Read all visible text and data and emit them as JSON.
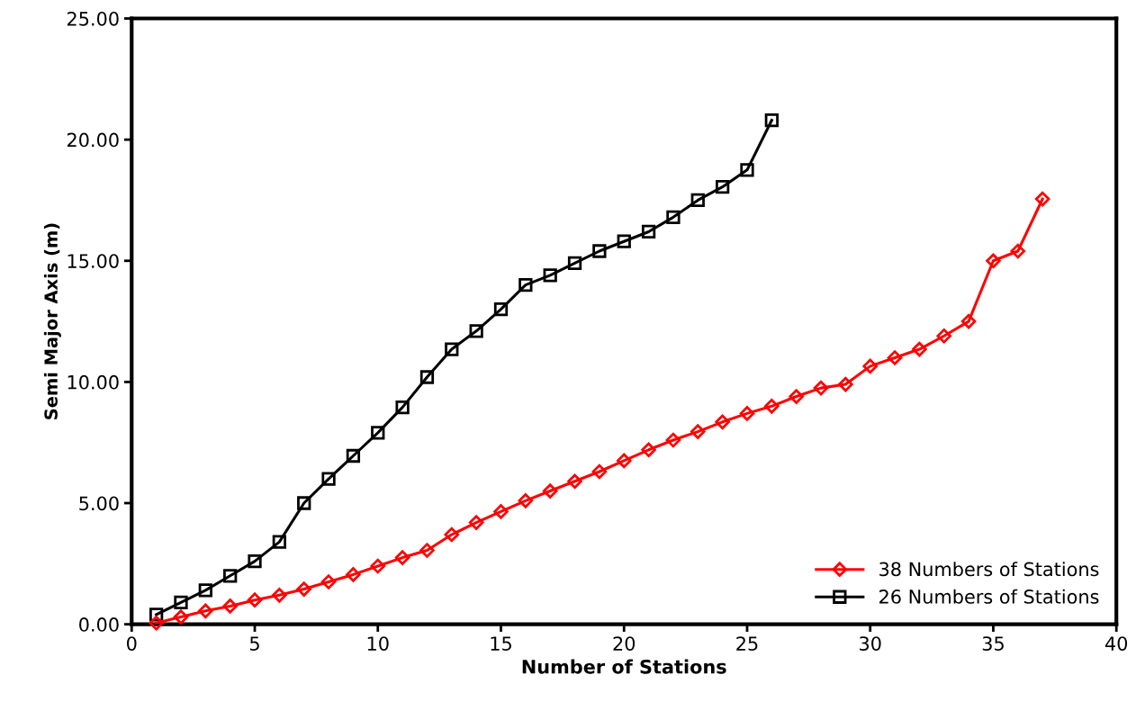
{
  "chart_data": {
    "type": "line",
    "xlabel": "Number of Stations",
    "ylabel": "Semi Major Axis (m)",
    "xlim": [
      0,
      40
    ],
    "xticks": [
      0,
      5,
      10,
      15,
      20,
      25,
      30,
      35,
      40
    ],
    "ylim": [
      0,
      25
    ],
    "yticks": [
      {
        "value": 0,
        "label": "0.00"
      },
      {
        "value": 5,
        "label": "5.00"
      },
      {
        "value": 10,
        "label": "10.00"
      },
      {
        "value": 15,
        "label": "15.00"
      },
      {
        "value": 20,
        "label": "20.00"
      },
      {
        "value": 25,
        "label": "25.00"
      }
    ],
    "grid": false,
    "legend": "bottom right",
    "line_style": "solid",
    "series": [
      {
        "name": "38 Numbers of Stations",
        "color": "#ff0000",
        "marker": "diamond",
        "x": [
          1,
          2,
          3,
          4,
          5,
          6,
          7,
          8,
          9,
          10,
          11,
          12,
          13,
          14,
          15,
          16,
          17,
          18,
          19,
          20,
          21,
          22,
          23,
          24,
          25,
          26,
          27,
          28,
          29,
          30,
          31,
          32,
          33,
          34,
          35,
          36,
          37
        ],
        "values": [
          0.05,
          0.3,
          0.55,
          0.75,
          1.0,
          1.2,
          1.45,
          1.75,
          2.05,
          2.4,
          2.75,
          3.05,
          3.7,
          4.2,
          4.65,
          5.1,
          5.5,
          5.9,
          6.3,
          6.75,
          7.2,
          7.6,
          7.95,
          8.35,
          8.7,
          9.0,
          9.4,
          9.75,
          9.9,
          10.65,
          11.0,
          11.35,
          11.9,
          12.5,
          15.0,
          15.4,
          17.55
        ]
      },
      {
        "name": "26 Numbers of Stations",
        "color": "#000000",
        "marker": "square",
        "x": [
          1,
          2,
          3,
          4,
          5,
          6,
          7,
          8,
          9,
          10,
          11,
          12,
          13,
          14,
          15,
          16,
          17,
          18,
          19,
          20,
          21,
          22,
          23,
          24,
          25,
          26
        ],
        "values": [
          0.4,
          0.9,
          1.4,
          2.0,
          2.6,
          3.4,
          5.0,
          6.0,
          6.95,
          7.9,
          8.95,
          10.2,
          11.35,
          12.1,
          13.0,
          14.0,
          14.4,
          14.9,
          15.4,
          15.8,
          16.2,
          16.8,
          17.5,
          18.05,
          18.75,
          20.8
        ]
      }
    ]
  }
}
